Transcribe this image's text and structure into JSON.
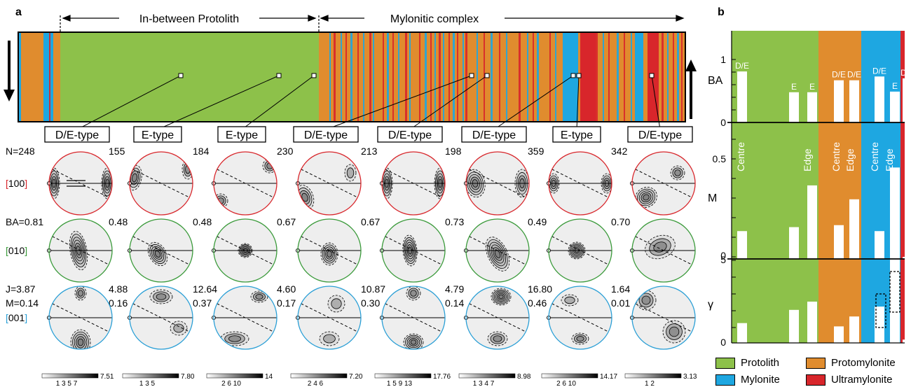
{
  "panel_a": {
    "label": "a",
    "header_left": "In-between Protolith",
    "header_right": "Mylonitic complex",
    "type_labels": [
      "D/E-type",
      "E-type",
      "E-type",
      "D/E-type",
      "D/E-type",
      "D/E-type",
      "E-type",
      "D/E-type"
    ],
    "row_N": [
      "N=248",
      "155",
      "184",
      "230",
      "213",
      "198",
      "359",
      "342"
    ],
    "row_BA": [
      "BA=0.81",
      "0.48",
      "0.48",
      "0.67",
      "0.67",
      "0.73",
      "0.49",
      "0.70"
    ],
    "row_J": [
      "J=3.87",
      "4.88",
      "12.64",
      "4.60",
      "10.87",
      "4.79",
      "16.80",
      "1.64"
    ],
    "row_M": [
      "M=0.14",
      "0.16",
      "0.37",
      "0.17",
      "0.30",
      "0.14",
      "0.46",
      "0.01"
    ],
    "axis_labels": [
      "[100]",
      "[010]",
      "[001]"
    ],
    "axis_colors": [
      "#d8262b",
      "#3a9a3a",
      "#2a9fd6"
    ],
    "scale_max": [
      "7.51",
      "7.80",
      "14",
      "7.20",
      "17.76",
      "8.98",
      "14.17",
      "3.13"
    ],
    "scale_ticks": [
      "1 3 5 7",
      "1 3 5",
      "2 6 10",
      "2 4 6",
      "1 5 9 13",
      "1 3 4 7",
      "2 6 10",
      "1 2"
    ]
  },
  "panel_b": {
    "label": "b",
    "ba_axis": "BA",
    "m_axis": "M",
    "gamma_axis": "γ",
    "ba_ticks": [
      "1",
      "0"
    ],
    "m_ticks": [
      "0.5",
      "0"
    ],
    "gamma_ticks": [
      "5",
      "0"
    ],
    "ba_bars": [
      0.81,
      0.48,
      0.48,
      0.67,
      0.67,
      0.73,
      0.49,
      0.7
    ],
    "ba_bar_labels": [
      "D/E",
      "E",
      "E",
      "D/E",
      "D/E",
      "D/E",
      "E",
      "D/E"
    ],
    "m_bars": [
      0.14,
      0.16,
      0.37,
      0.17,
      0.3,
      0.14,
      0.46,
      0.01
    ],
    "gamma_bars": [
      1.2,
      2.0,
      2.5,
      1.0,
      1.6,
      2.2,
      5.3,
      0.2
    ],
    "centre_label": "Centre",
    "edge_label": "Edge"
  },
  "legend": [
    {
      "label": "Protolith",
      "color": "#8dc14a"
    },
    {
      "label": "Protomylonite",
      "color": "#e08c2e"
    },
    {
      "label": "Mylonite",
      "color": "#1ea7e1"
    },
    {
      "label": "Ultramylonite",
      "color": "#d8262b"
    }
  ],
  "colors": {
    "protolith": "#8dc14a",
    "protomylonite": "#e08c2e",
    "mylonite": "#1ea7e1",
    "ultramylonite": "#d8262b"
  }
}
